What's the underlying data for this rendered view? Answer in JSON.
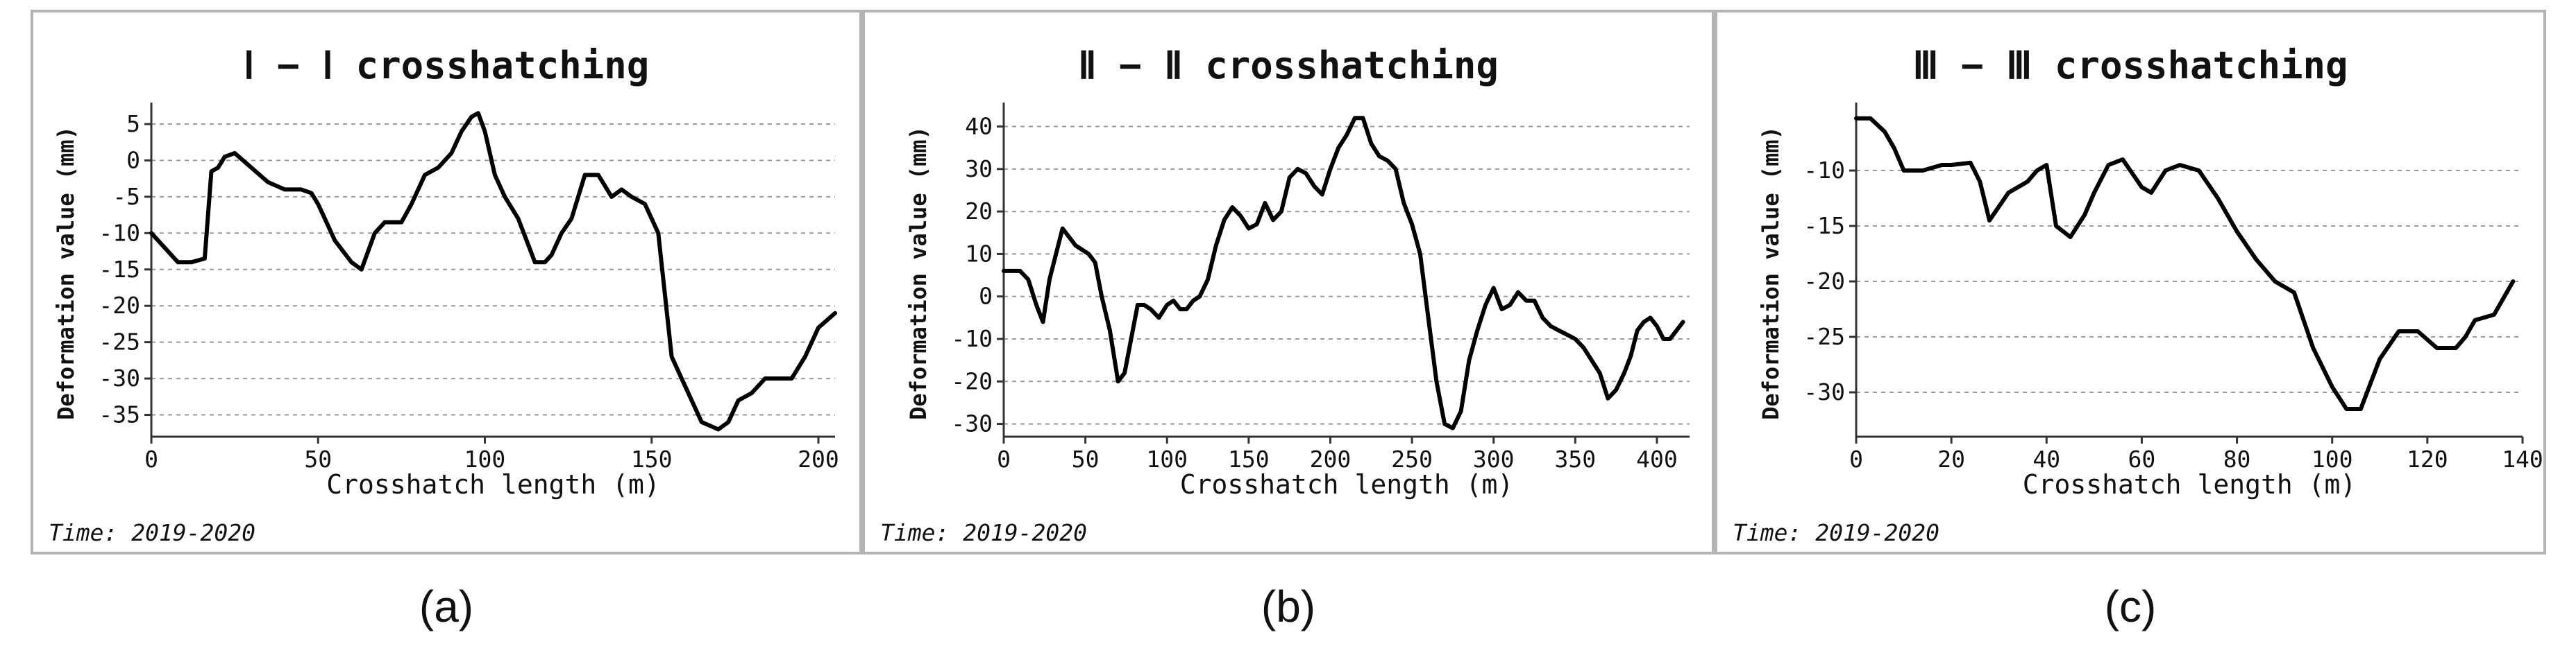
{
  "chart_data": [
    {
      "type": "line",
      "title": "Ⅰ − Ⅰ crosshatching",
      "xlabel": "Crosshatch length (m)",
      "ylabel": "Deformation value (mm)",
      "time": "Time: 2019-2020",
      "caption": "(a)",
      "xlim": [
        0,
        205
      ],
      "ylim": [
        -38,
        7
      ],
      "xticks": [
        0,
        50,
        100,
        150,
        200
      ],
      "xtick_labels": [
        "0",
        "50",
        "100",
        "150",
        "200"
      ],
      "yticks": [
        5,
        0,
        -5,
        -10,
        -15,
        -20,
        -25,
        -30,
        -35
      ],
      "ytick_labels": [
        "5",
        "0",
        "-5",
        "-10",
        "-15",
        "-20",
        "-25",
        "-30",
        "-35"
      ],
      "grid": true,
      "x": [
        0,
        4,
        8,
        12,
        16,
        18,
        20,
        22,
        25,
        30,
        35,
        40,
        45,
        48,
        50,
        52,
        55,
        60,
        63,
        67,
        70,
        75,
        78,
        82,
        86,
        90,
        93,
        96,
        98,
        100,
        103,
        106,
        110,
        115,
        118,
        120,
        123,
        126,
        130,
        134,
        138,
        141,
        144,
        148,
        152,
        156,
        160,
        165,
        170,
        173,
        176,
        180,
        184,
        188,
        192,
        196,
        200,
        205
      ],
      "y": [
        -10,
        -12,
        -14,
        -14,
        -13.5,
        -1.5,
        -1,
        0.5,
        1,
        -1,
        -3,
        -4,
        -4,
        -4.5,
        -6,
        -8,
        -11,
        -14,
        -15,
        -10,
        -8.5,
        -8.5,
        -6,
        -2,
        -1,
        1,
        4,
        6,
        6.5,
        4,
        -2,
        -5,
        -8,
        -14,
        -14,
        -13,
        -10,
        -8,
        -2,
        -2,
        -5,
        -4,
        -5,
        -6,
        -10,
        -27,
        -31,
        -36,
        -37,
        -36,
        -33,
        -32,
        -30,
        -30,
        -30,
        -27,
        -23,
        -21
      ]
    },
    {
      "type": "line",
      "title": "Ⅱ − Ⅱ crosshatching",
      "xlabel": "Crosshatch length (m)",
      "ylabel": "Deformation value (mm)",
      "time": "Time: 2019-2020",
      "caption": "(b)",
      "xlim": [
        0,
        420
      ],
      "ylim": [
        -33,
        44
      ],
      "xticks": [
        0,
        50,
        100,
        150,
        200,
        250,
        300,
        350,
        400
      ],
      "xtick_labels": [
        "0",
        "50",
        "100",
        "150",
        "200",
        "250",
        "300",
        "350",
        "400"
      ],
      "yticks": [
        40,
        30,
        20,
        10,
        0,
        -10,
        -20,
        -30
      ],
      "ytick_labels": [
        "40",
        "30",
        "20",
        "10",
        "0",
        "-10",
        "-20",
        "-30"
      ],
      "grid": true,
      "x": [
        0,
        5,
        10,
        15,
        20,
        24,
        28,
        32,
        36,
        40,
        44,
        48,
        52,
        56,
        60,
        65,
        70,
        74,
        78,
        82,
        86,
        90,
        95,
        100,
        104,
        108,
        112,
        116,
        120,
        125,
        130,
        135,
        140,
        145,
        150,
        155,
        160,
        165,
        170,
        175,
        180,
        185,
        190,
        195,
        200,
        205,
        210,
        215,
        220,
        225,
        230,
        235,
        240,
        245,
        250,
        255,
        260,
        265,
        270,
        275,
        280,
        285,
        290,
        295,
        300,
        305,
        310,
        315,
        320,
        325,
        330,
        335,
        340,
        345,
        350,
        355,
        360,
        365,
        370,
        375,
        380,
        384,
        388,
        392,
        396,
        400,
        404,
        408,
        412,
        416
      ],
      "y": [
        6,
        6,
        6,
        4,
        -2,
        -6,
        4,
        10,
        16,
        14,
        12,
        11,
        10,
        8,
        0,
        -8,
        -20,
        -18,
        -10,
        -2,
        -2,
        -3,
        -5,
        -2,
        -1,
        -3,
        -3,
        -1,
        0,
        4,
        12,
        18,
        21,
        19,
        16,
        17,
        22,
        18,
        20,
        28,
        30,
        29,
        26,
        24,
        30,
        35,
        38,
        42,
        42,
        36,
        33,
        32,
        30,
        22,
        17,
        10,
        -5,
        -20,
        -30,
        -31,
        -27,
        -15,
        -8,
        -2,
        2,
        -3,
        -2,
        1,
        -1,
        -1,
        -5,
        -7,
        -8,
        -9,
        -10,
        -12,
        -15,
        -18,
        -24,
        -22,
        -18,
        -14,
        -8,
        -6,
        -5,
        -7,
        -10,
        -10,
        -8,
        -6
      ]
    },
    {
      "type": "line",
      "title": "Ⅲ − Ⅲ crosshatching",
      "xlabel": "Crosshatch length (m)",
      "ylabel": "Deformation value (mm)",
      "time": "Time: 2019-2020",
      "caption": "(c)",
      "xlim": [
        0,
        140
      ],
      "ylim": [
        -34,
        -4.5
      ],
      "xticks": [
        0,
        20,
        40,
        60,
        80,
        100,
        120,
        140
      ],
      "xtick_labels": [
        "0",
        "20",
        "40",
        "60",
        "80",
        "100",
        "120",
        "140"
      ],
      "yticks": [
        -10,
        -15,
        -20,
        -25,
        -30
      ],
      "ytick_labels": [
        "-10",
        "-15",
        "-20",
        "-25",
        "-30"
      ],
      "grid": true,
      "x": [
        0,
        3,
        6,
        8,
        10,
        14,
        18,
        20,
        24,
        26,
        28,
        32,
        36,
        38,
        40,
        42,
        45,
        48,
        50,
        53,
        56,
        60,
        62,
        65,
        68,
        72,
        76,
        80,
        84,
        88,
        92,
        96,
        100,
        103,
        106,
        110,
        114,
        118,
        122,
        126,
        128,
        130,
        134,
        138
      ],
      "y": [
        -5.3,
        -5.3,
        -6.5,
        -8,
        -10,
        -10,
        -9.5,
        -9.5,
        -9.3,
        -11,
        -14.5,
        -12,
        -11,
        -10,
        -9.5,
        -15,
        -16,
        -14,
        -12,
        -9.5,
        -9,
        -11.5,
        -12,
        -10,
        -9.5,
        -10,
        -12.5,
        -15.5,
        -18,
        -20,
        -21,
        -26,
        -29.5,
        -31.5,
        -31.5,
        -27,
        -24.5,
        -24.5,
        -26,
        -26,
        -25,
        -23.5,
        -23,
        -20
      ]
    }
  ]
}
